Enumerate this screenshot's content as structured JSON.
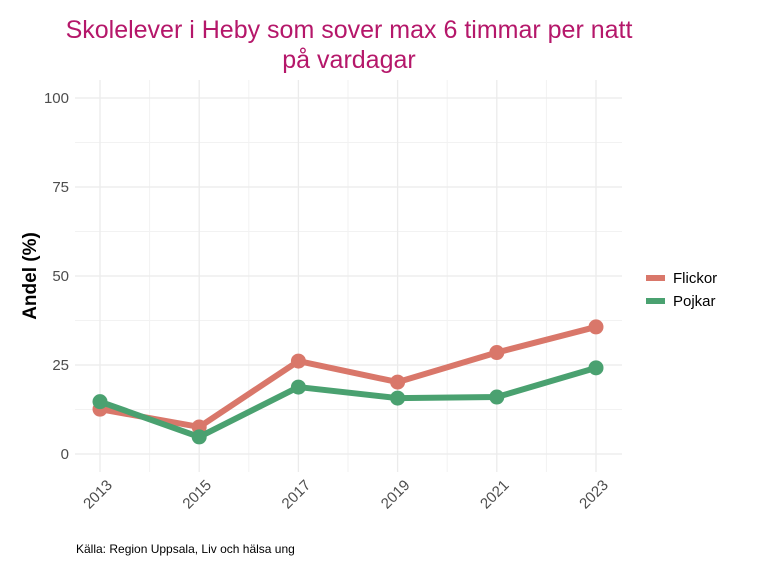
{
  "chart_data": {
    "type": "line",
    "title": "Skolelever i Heby som sover max 6 timmar per natt",
    "title_line2": "på vardagar",
    "xlabel": "",
    "ylabel": "Andel (%)",
    "x": [
      2013,
      2015,
      2017,
      2019,
      2021,
      2023
    ],
    "x_tick_labels": [
      "2013",
      "2015",
      "2017",
      "2019",
      "2021",
      "2023"
    ],
    "y_tick_labels": [
      "0",
      "25",
      "50",
      "75",
      "100"
    ],
    "y_ticks": [
      0,
      25,
      50,
      75,
      100
    ],
    "ylim": [
      0,
      100
    ],
    "grid": true,
    "legend_position": "right",
    "series": [
      {
        "name": "Flickor",
        "color": "#D9776A",
        "values": [
          12.6,
          7.6,
          26.1,
          20.2,
          28.5,
          35.7
        ]
      },
      {
        "name": "Pojkar",
        "color": "#4AA170",
        "values": [
          14.7,
          4.8,
          18.8,
          15.7,
          16.0,
          24.2
        ]
      }
    ],
    "caption": "Källa: Region Uppsala, Liv och hälsa ung",
    "title_color": "#B5176A"
  }
}
